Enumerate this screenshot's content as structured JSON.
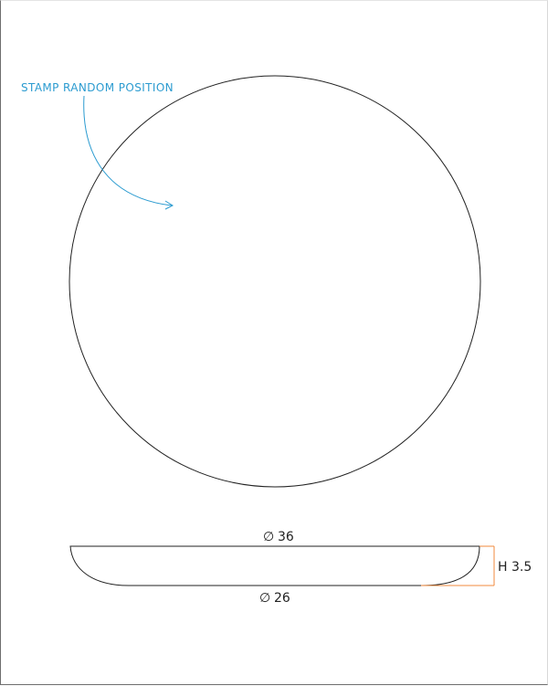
{
  "annotation": {
    "text": "STAMP RANDOM POSITION",
    "color": "#2b9bd0"
  },
  "dimensions": {
    "outer_diameter_symbol": "∅",
    "outer_diameter_value": "36",
    "inner_diameter_symbol": "∅",
    "inner_diameter_value": "26",
    "height": "H 3.5",
    "height_line_color": "#f08a3c"
  },
  "colors": {
    "outline": "#222222",
    "text": "#222222",
    "background": "#ffffff"
  }
}
